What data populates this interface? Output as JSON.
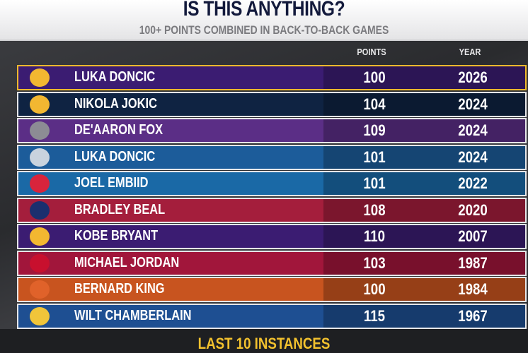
{
  "header": {
    "title": "IS THIS ANYTHING?",
    "subtitle": "100+ POINTS COMBINED IN BACK-TO-BACK GAMES"
  },
  "columns": {
    "points": "POINTS",
    "year": "YEAR"
  },
  "rows": [
    {
      "team_icon": "lakers-logo",
      "color": "#3b1c72",
      "logo_color": "#f2b731",
      "name": "LUKA DONCIC",
      "points": "100",
      "year": "2026",
      "highlighted": true
    },
    {
      "team_icon": "nuggets-logo",
      "color": "#0f2342",
      "logo_color": "#f2b731",
      "name": "NIKOLA JOKIC",
      "points": "104",
      "year": "2024"
    },
    {
      "team_icon": "kings-logo",
      "color": "#5b2e86",
      "logo_color": "#8c8c94",
      "name": "DE'AARON FOX",
      "points": "109",
      "year": "2024"
    },
    {
      "team_icon": "mavericks-logo",
      "color": "#1c5c9a",
      "logo_color": "#c9d3de",
      "name": "LUKA DONCIC",
      "points": "101",
      "year": "2024"
    },
    {
      "team_icon": "76ers-logo",
      "color": "#1a69a6",
      "logo_color": "#d8243c",
      "name": "JOEL EMBIID",
      "points": "101",
      "year": "2022"
    },
    {
      "team_icon": "wizards-logo",
      "color": "#a41e3c",
      "logo_color": "#1b2f6e",
      "name": "BRADLEY BEAL",
      "points": "108",
      "year": "2020"
    },
    {
      "team_icon": "lakers-logo",
      "color": "#3b1c72",
      "logo_color": "#f2b731",
      "name": "KOBE BRYANT",
      "points": "110",
      "year": "2007"
    },
    {
      "team_icon": "bulls-logo",
      "color": "#a1163b",
      "logo_color": "#c8102e",
      "name": "MICHAEL JORDAN",
      "points": "103",
      "year": "1987"
    },
    {
      "team_icon": "knicks-logo",
      "color": "#c8541f",
      "logo_color": "#e0622a",
      "name": "BERNARD KING",
      "points": "100",
      "year": "1984"
    },
    {
      "team_icon": "warriors-logo",
      "color": "#1e4f92",
      "logo_color": "#f0c53a",
      "name": "WILT CHAMBERLAIN",
      "points": "115",
      "year": "1967"
    }
  ],
  "footer": "LAST 10 INSTANCES"
}
